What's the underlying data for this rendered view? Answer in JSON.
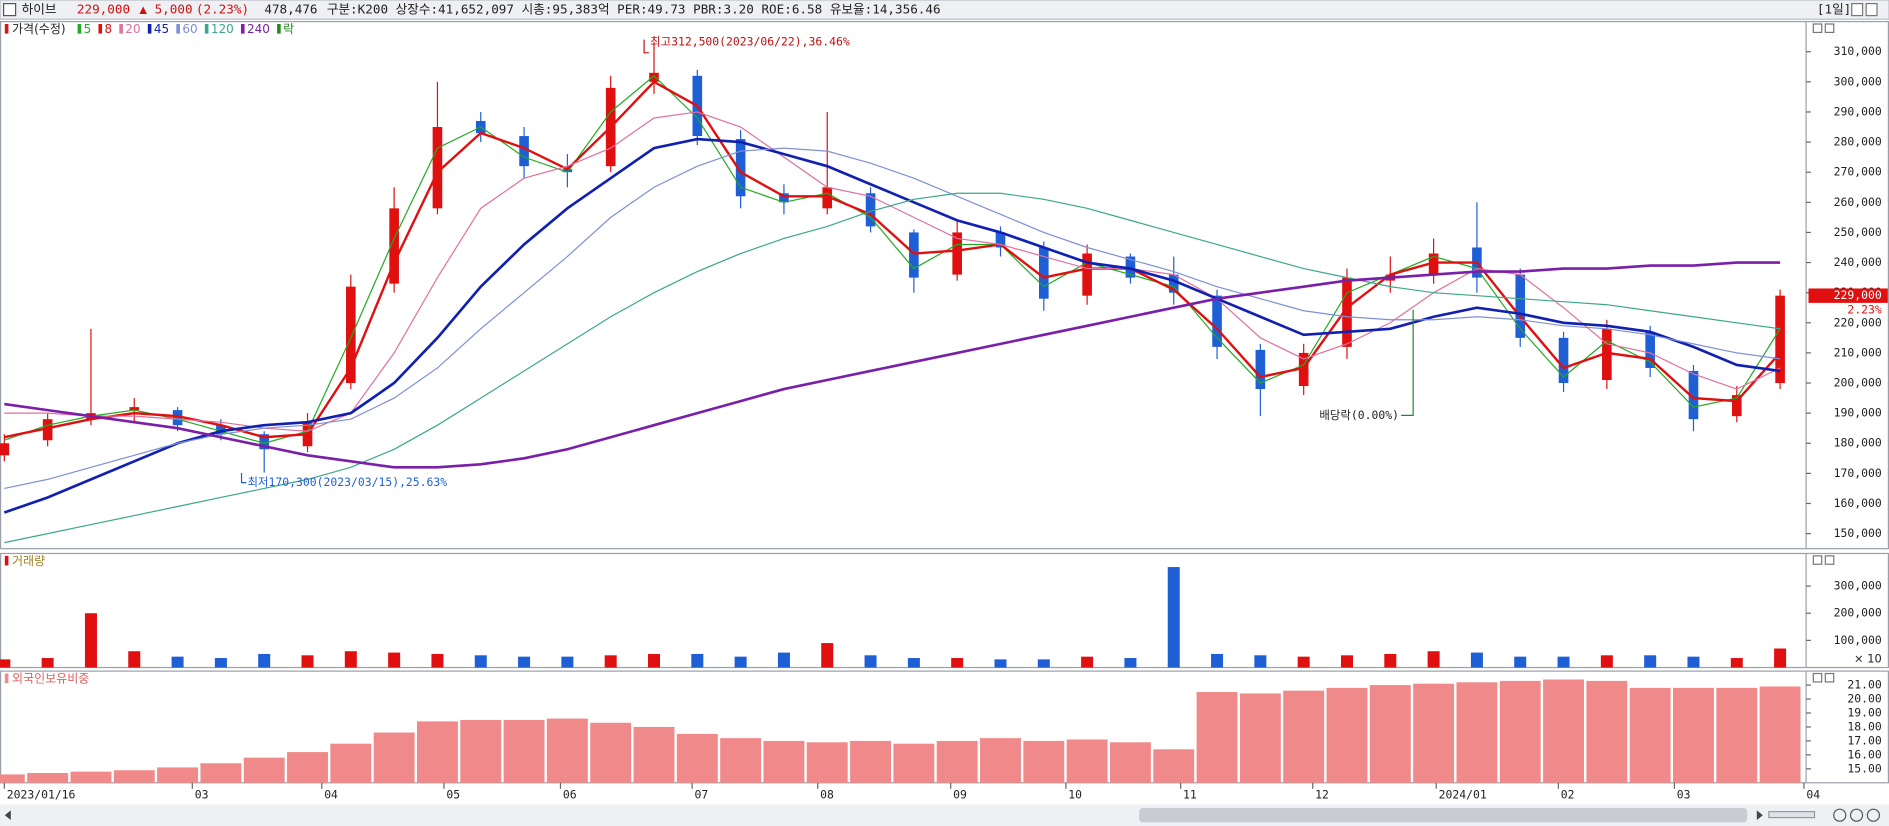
{
  "header": {
    "name": "하이브",
    "price": "229,000",
    "change": "▲ 5,000",
    "change_pct": "(2.23%)",
    "volume": "478,476",
    "info": "구분:K200 상장수:41,652,097 시총:95,383억 PER:49.73 PBR:3.20 ROE:6.58 유보율:14,356.46",
    "period": "[1일]"
  },
  "chart_data": [
    {
      "type": "candlestick",
      "title": "가격(수정)",
      "up_color": "#e01010",
      "down_color": "#1f5fd6",
      "open": [
        176000,
        181000,
        188000,
        191000,
        191000,
        186000,
        183000,
        179000,
        200000,
        233000,
        258000,
        287000,
        282000,
        271000,
        272000,
        300000,
        302000,
        281000,
        263000,
        258000,
        263000,
        250000,
        236000,
        250000,
        245000,
        229000,
        242000,
        236000,
        229000,
        211000,
        199000,
        212000,
        234000,
        236000,
        245000,
        236000,
        215000,
        201000,
        217000,
        204000,
        189000,
        200000
      ],
      "high": [
        183000,
        190000,
        218000,
        195000,
        192000,
        188000,
        184000,
        190000,
        236000,
        265000,
        300000,
        290000,
        285000,
        276000,
        302000,
        312500,
        304000,
        284000,
        266000,
        290000,
        265000,
        251000,
        254000,
        252000,
        247000,
        246000,
        243000,
        242000,
        231000,
        213000,
        213000,
        238000,
        242000,
        248000,
        260000,
        238000,
        217000,
        221000,
        219000,
        206000,
        199000,
        231000
      ],
      "low": [
        174000,
        179000,
        186000,
        187000,
        184000,
        181000,
        170300,
        177000,
        198000,
        230000,
        256000,
        280000,
        268000,
        265000,
        270000,
        296000,
        279000,
        258000,
        256000,
        256000,
        250000,
        230000,
        234000,
        242000,
        224000,
        226000,
        233000,
        226000,
        208000,
        189000,
        196000,
        208000,
        230000,
        233000,
        230000,
        212000,
        197000,
        198000,
        202000,
        184000,
        187000,
        198000
      ],
      "close": [
        180000,
        188000,
        190000,
        192000,
        186000,
        183000,
        178000,
        187000,
        232000,
        258000,
        285000,
        283000,
        272000,
        270000,
        298000,
        303000,
        282000,
        262000,
        260000,
        265000,
        252000,
        235000,
        250000,
        245000,
        228000,
        243000,
        235000,
        230000,
        212000,
        198000,
        210000,
        235000,
        236000,
        243000,
        235000,
        215000,
        200000,
        218000,
        205000,
        188000,
        196000,
        229000
      ],
      "moving_averages": [
        {
          "name": "5",
          "color": "#22aa22",
          "width": 1,
          "values": [
            181000,
            186000,
            189000,
            191000,
            188000,
            184000,
            180000,
            184000,
            215000,
            248000,
            278000,
            285000,
            275000,
            270000,
            290000,
            302000,
            288000,
            265000,
            260000,
            263000,
            255000,
            238000,
            246000,
            246000,
            232000,
            240000,
            236000,
            232000,
            215000,
            200000,
            206000,
            230000,
            236000,
            242000,
            238000,
            218000,
            202000,
            214000,
            207000,
            192000,
            195000,
            218000
          ]
        },
        {
          "name": "8",
          "color": "#e01010",
          "width": 2,
          "values": [
            182000,
            185000,
            188000,
            190000,
            189000,
            186000,
            182000,
            183000,
            205000,
            240000,
            270000,
            283000,
            278000,
            271000,
            285000,
            300000,
            292000,
            270000,
            262000,
            262000,
            256000,
            243000,
            244000,
            246000,
            235000,
            238000,
            238000,
            231000,
            218000,
            202000,
            205000,
            225000,
            236000,
            240000,
            240000,
            222000,
            205000,
            210000,
            208000,
            195000,
            194000,
            210000
          ]
        },
        {
          "name": "20",
          "color": "#e070a0",
          "width": 1,
          "values": [
            190000,
            190000,
            189000,
            189000,
            188000,
            187000,
            185000,
            184000,
            190000,
            210000,
            235000,
            258000,
            268000,
            272000,
            278000,
            288000,
            290000,
            285000,
            275000,
            265000,
            262000,
            255000,
            248000,
            246000,
            242000,
            238000,
            238000,
            236000,
            228000,
            215000,
            208000,
            213000,
            220000,
            230000,
            238000,
            236000,
            225000,
            213000,
            210000,
            203000,
            198000,
            205000
          ]
        },
        {
          "name": "45",
          "color": "#1020b0",
          "width": 2.2,
          "values": [
            157000,
            162000,
            168000,
            174000,
            180000,
            184000,
            186000,
            187000,
            190000,
            200000,
            215000,
            232000,
            246000,
            258000,
            268000,
            278000,
            281000,
            280000,
            276000,
            272000,
            266000,
            260000,
            254000,
            250000,
            245000,
            240000,
            238000,
            234000,
            228000,
            222000,
            216000,
            217000,
            218000,
            222000,
            225000,
            223000,
            220000,
            219000,
            217000,
            212000,
            206000,
            204000
          ]
        },
        {
          "name": "60",
          "color": "#7f8fd8",
          "width": 1,
          "values": [
            165000,
            168000,
            172000,
            176000,
            180000,
            183000,
            185000,
            186000,
            188000,
            195000,
            205000,
            218000,
            230000,
            242000,
            255000,
            265000,
            272000,
            277000,
            278000,
            277000,
            273000,
            268000,
            262000,
            256000,
            250000,
            245000,
            241000,
            237000,
            232000,
            228000,
            224000,
            222000,
            221000,
            221000,
            222000,
            221000,
            219000,
            218000,
            216000,
            213000,
            210000,
            208000
          ]
        },
        {
          "name": "120",
          "color": "#3aa88a",
          "width": 1,
          "values": [
            147000,
            150000,
            153000,
            156000,
            159000,
            162000,
            165000,
            168000,
            172000,
            178000,
            186000,
            195000,
            204000,
            213000,
            222000,
            230000,
            237000,
            243000,
            248000,
            252000,
            257000,
            261000,
            263000,
            263000,
            261000,
            258000,
            254000,
            250000,
            246000,
            242000,
            238000,
            235000,
            232000,
            230000,
            229000,
            228000,
            227000,
            226000,
            224000,
            222000,
            220000,
            218000
          ]
        },
        {
          "name": "240",
          "color": "#7a1fa8",
          "width": 2.2,
          "values": [
            193000,
            191000,
            189000,
            187000,
            185000,
            182000,
            179000,
            176000,
            174000,
            172000,
            172000,
            173000,
            175000,
            178000,
            182000,
            186000,
            190000,
            194000,
            198000,
            201000,
            204000,
            207000,
            210000,
            213000,
            216000,
            219000,
            222000,
            225000,
            228000,
            230000,
            232000,
            234000,
            235000,
            236000,
            237000,
            237000,
            238000,
            238000,
            239000,
            239000,
            240000,
            240000
          ]
        }
      ],
      "ex_dividend_label": "락",
      "ex_dividend_color": "#228822",
      "annotations": [
        "최고312,500(2023/06/22),36.46%",
        "최저170,300(2023/03/15),25.63%",
        "배당락(0.00%)"
      ],
      "last_label": "229,000",
      "last_change": "2.23%",
      "ylim": [
        145000,
        320000
      ],
      "yticks": [
        {
          "value": 150000,
          "label": "150,000"
        },
        {
          "value": 160000,
          "label": "160,000"
        },
        {
          "value": 170000,
          "label": "170,000"
        },
        {
          "value": 180000,
          "label": "180,000"
        },
        {
          "value": 190000,
          "label": "190,000"
        },
        {
          "value": 200000,
          "label": "200,000"
        },
        {
          "value": 210000,
          "label": "210,000"
        },
        {
          "value": 220000,
          "label": "220,000"
        },
        {
          "value": 230000,
          "label": "230,000"
        },
        {
          "value": 240000,
          "label": "240,000"
        },
        {
          "value": 250000,
          "label": "250,000"
        },
        {
          "value": 260000,
          "label": "260,000"
        },
        {
          "value": 270000,
          "label": "270,000"
        },
        {
          "value": 280000,
          "label": "280,000"
        },
        {
          "value": 290000,
          "label": "290,000"
        },
        {
          "value": 300000,
          "label": "300,000"
        },
        {
          "value": 310000,
          "label": "310,000"
        }
      ]
    },
    {
      "type": "bar",
      "title": "거래량",
      "unit_label": "× 10",
      "up_color": "#e01010",
      "down_color": "#1f5fd6",
      "values": [
        30000,
        35000,
        200000,
        60000,
        40000,
        35000,
        50000,
        45000,
        60000,
        55000,
        50000,
        45000,
        40000,
        40000,
        45000,
        50000,
        50000,
        40000,
        55000,
        90000,
        45000,
        35000,
        35000,
        30000,
        30000,
        40000,
        35000,
        370000,
        50000,
        45000,
        40000,
        45000,
        50000,
        60000,
        55000,
        40000,
        40000,
        45000,
        45000,
        40000,
        35000,
        70000
      ],
      "ylim": [
        0,
        420000
      ],
      "yticks": [
        {
          "value": 100000,
          "label": "100,000"
        },
        {
          "value": 200000,
          "label": "200,000"
        },
        {
          "value": 300000,
          "label": "300,000"
        }
      ]
    },
    {
      "type": "bar",
      "title": "외국인보유비중",
      "color": "#f08a8a",
      "values": [
        14.6,
        14.7,
        14.8,
        14.9,
        15.1,
        15.4,
        15.8,
        16.2,
        16.8,
        17.6,
        18.4,
        18.5,
        18.5,
        18.6,
        18.3,
        18.0,
        17.5,
        17.2,
        17.0,
        16.9,
        17.0,
        16.8,
        17.0,
        17.2,
        17.0,
        17.1,
        16.9,
        16.4,
        20.5,
        20.4,
        20.6,
        20.8,
        21.0,
        21.1,
        21.2,
        21.3,
        21.4,
        21.3,
        20.8,
        20.8,
        20.8,
        20.9
      ],
      "ylim": [
        14,
        22
      ],
      "yticks": [
        {
          "value": 15,
          "label": "15.00"
        },
        {
          "value": 16,
          "label": "16.00"
        },
        {
          "value": 17,
          "label": "17.00"
        },
        {
          "value": 18,
          "label": "18.00"
        },
        {
          "value": 19,
          "label": "19.00"
        },
        {
          "value": 20,
          "label": "20.00"
        },
        {
          "value": 21,
          "label": "21.00"
        }
      ],
      "xlim": [
        -0.1,
        41.6
      ],
      "xticks": [
        {
          "value": 0,
          "label": "2023/01/16"
        },
        {
          "value": 4.34,
          "label": "03"
        },
        {
          "value": 7.33,
          "label": "04"
        },
        {
          "value": 10.15,
          "label": "05"
        },
        {
          "value": 12.84,
          "label": "06"
        },
        {
          "value": 15.88,
          "label": "07"
        },
        {
          "value": 18.78,
          "label": "08"
        },
        {
          "value": 21.85,
          "label": "09"
        },
        {
          "value": 24.51,
          "label": "10"
        },
        {
          "value": 27.16,
          "label": "11"
        },
        {
          "value": 30.21,
          "label": "12"
        },
        {
          "value": 33.06,
          "label": "2024/01"
        },
        {
          "value": 35.88,
          "label": "02"
        },
        {
          "value": 38.56,
          "label": "03"
        },
        {
          "value": 41.55,
          "label": "04"
        }
      ]
    }
  ]
}
